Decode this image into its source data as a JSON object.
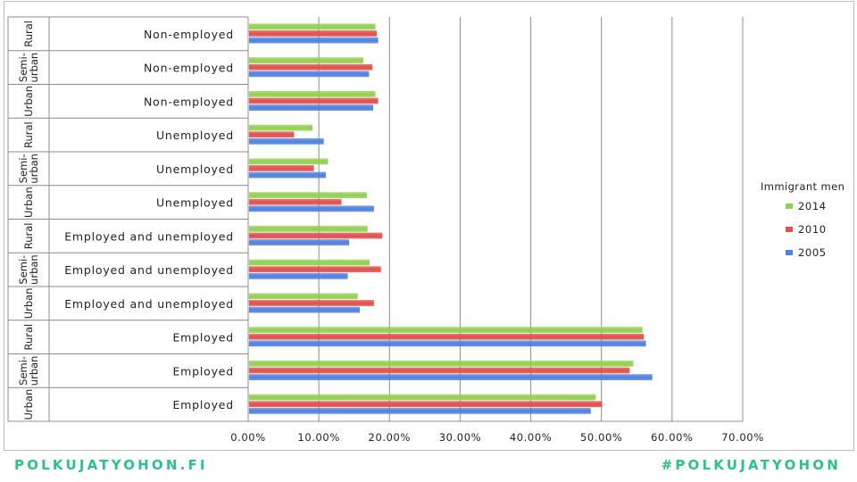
{
  "chart_data": {
    "type": "bar",
    "orientation": "horizontal",
    "rows": [
      {
        "group": "Rural",
        "category": "Non-employed"
      },
      {
        "group": "Semi-\nurban",
        "category": "Non-employed"
      },
      {
        "group": "Urban",
        "category": "Non-employed"
      },
      {
        "group": "Rural",
        "category": "Unemployed"
      },
      {
        "group": "Semi-\nurban",
        "category": "Unemployed"
      },
      {
        "group": "Urban",
        "category": "Unemployed"
      },
      {
        "group": "Rural",
        "category": "Employed and unemployed"
      },
      {
        "group": "Semi-\nurban",
        "category": "Employed and unemployed"
      },
      {
        "group": "Urban",
        "category": "Employed and unemployed"
      },
      {
        "group": "Rural",
        "category": "Employed"
      },
      {
        "group": "Semi-\nurban",
        "category": "Employed"
      },
      {
        "group": "Urban",
        "category": "Employed"
      }
    ],
    "series": [
      {
        "name": "2014",
        "color": "#92d050",
        "values": [
          18.0,
          16.3,
          18.0,
          9.1,
          11.3,
          16.8,
          16.9,
          17.2,
          15.5,
          55.8,
          54.5,
          49.2
        ]
      },
      {
        "name": "2010",
        "color": "#e0504d",
        "values": [
          18.2,
          17.6,
          18.4,
          6.5,
          9.3,
          13.2,
          19.0,
          18.8,
          17.8,
          56.0,
          54.0,
          50.1
        ]
      },
      {
        "name": "2005",
        "color": "#4f81e0",
        "values": [
          18.4,
          17.1,
          17.7,
          10.7,
          11.0,
          17.8,
          14.3,
          14.1,
          15.8,
          56.3,
          57.2,
          48.5
        ]
      }
    ],
    "legend_title": "Immigrant men",
    "legend_position": "right",
    "xlim": [
      0,
      70
    ],
    "xticks": [
      "0.00%",
      "10.00%",
      "20.00%",
      "30.00%",
      "40.00%",
      "50.00%",
      "60.00%",
      "70.00%"
    ],
    "grid": true,
    "title": ""
  },
  "footer": {
    "left": "POLKUJATYOHON.FI",
    "right": "#POLKUJATYOHON"
  }
}
